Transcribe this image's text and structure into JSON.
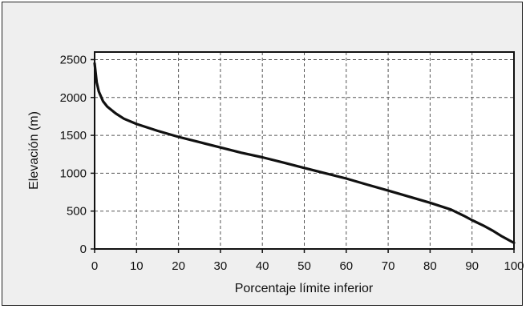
{
  "chart_data": {
    "type": "line",
    "xlabel": "Porcentaje límite inferior",
    "ylabel": "Elevación (m)",
    "xlim": [
      0,
      100
    ],
    "ylim": [
      0,
      2600
    ],
    "x_ticks": [
      0,
      10,
      20,
      30,
      40,
      50,
      60,
      70,
      80,
      90,
      100
    ],
    "y_ticks": [
      0,
      500,
      1000,
      1500,
      2000,
      2500
    ],
    "grid": true,
    "grid_style": "dashed",
    "series": [
      {
        "color": "#111111",
        "x": [
          0,
          0.5,
          1,
          2,
          3,
          5,
          7,
          10,
          15,
          20,
          25,
          30,
          35,
          40,
          45,
          50,
          55,
          60,
          65,
          70,
          75,
          80,
          85,
          88,
          90,
          93,
          95,
          97,
          99,
          100
        ],
        "y": [
          2450,
          2200,
          2080,
          1950,
          1880,
          1790,
          1720,
          1650,
          1560,
          1480,
          1410,
          1340,
          1270,
          1210,
          1140,
          1070,
          1000,
          930,
          850,
          770,
          690,
          610,
          520,
          440,
          380,
          300,
          240,
          170,
          110,
          80
        ]
      }
    ]
  }
}
